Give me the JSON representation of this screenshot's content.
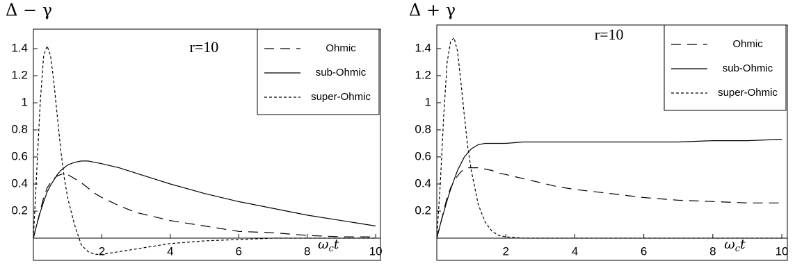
{
  "chart_data": [
    {
      "type": "line",
      "title": "Δ − γ",
      "annotation": "r=10",
      "xlabel": {
        "symbol": "ω",
        "subscript": "c",
        "variable": "t"
      },
      "legend": "top-right",
      "x": [
        0,
        0.1,
        0.2,
        0.3,
        0.4,
        0.5,
        0.6,
        0.7,
        0.8,
        0.9,
        1,
        1.2,
        1.4,
        1.6,
        1.8,
        2,
        2.5,
        3,
        3.5,
        4,
        5,
        6,
        7,
        8,
        9,
        10
      ],
      "series": [
        {
          "name": "Ohmic",
          "color": "#000000",
          "style": "long-dash",
          "values": [
            0,
            0.1,
            0.2,
            0.3,
            0.37,
            0.41,
            0.44,
            0.46,
            0.47,
            0.48,
            0.47,
            0.44,
            0.41,
            0.37,
            0.33,
            0.3,
            0.24,
            0.19,
            0.16,
            0.13,
            0.09,
            0.05,
            0.04,
            0.02,
            0.01,
            0.01
          ]
        },
        {
          "name": "sub-Ohmic",
          "color": "#000000",
          "style": "solid",
          "values": [
            0,
            0.1,
            0.19,
            0.27,
            0.34,
            0.39,
            0.43,
            0.47,
            0.5,
            0.52,
            0.54,
            0.56,
            0.57,
            0.57,
            0.56,
            0.55,
            0.52,
            0.48,
            0.44,
            0.4,
            0.33,
            0.27,
            0.22,
            0.17,
            0.13,
            0.09
          ]
        },
        {
          "name": "super-Ohmic",
          "color": "#000000",
          "style": "short-dash",
          "values": [
            0,
            0.5,
            1.0,
            1.35,
            1.42,
            1.35,
            1.15,
            0.9,
            0.65,
            0.45,
            0.3,
            0.1,
            -0.05,
            -0.1,
            -0.12,
            -0.12,
            -0.1,
            -0.08,
            -0.06,
            -0.04,
            -0.02,
            -0.01,
            0,
            0,
            0,
            0
          ]
        }
      ],
      "xlim": [
        0,
        10.14
      ],
      "ylim": [
        -0.164,
        1.544
      ],
      "xticks": [
        2,
        4,
        6,
        8,
        10
      ],
      "yticks": [
        0.2,
        0.4,
        0.6,
        0.8,
        1,
        1.2,
        1.4
      ]
    },
    {
      "type": "line",
      "title": "Δ + γ",
      "annotation": "r=10",
      "xlabel": {
        "symbol": "ω",
        "subscript": "c",
        "variable": "t"
      },
      "legend": "top-right",
      "x": [
        0,
        0.1,
        0.2,
        0.3,
        0.4,
        0.5,
        0.6,
        0.7,
        0.8,
        0.9,
        1,
        1.2,
        1.4,
        1.6,
        1.8,
        2,
        2.5,
        3,
        3.5,
        4,
        5,
        6,
        7,
        8,
        9,
        10
      ],
      "series": [
        {
          "name": "Ohmic",
          "color": "#000000",
          "style": "long-dash",
          "values": [
            0,
            0.1,
            0.2,
            0.3,
            0.37,
            0.42,
            0.46,
            0.49,
            0.51,
            0.52,
            0.52,
            0.52,
            0.51,
            0.5,
            0.48,
            0.47,
            0.44,
            0.41,
            0.38,
            0.36,
            0.33,
            0.3,
            0.28,
            0.27,
            0.26,
            0.26
          ]
        },
        {
          "name": "sub-Ohmic",
          "color": "#000000",
          "style": "solid",
          "values": [
            0,
            0.1,
            0.19,
            0.28,
            0.36,
            0.43,
            0.5,
            0.55,
            0.6,
            0.63,
            0.66,
            0.69,
            0.7,
            0.7,
            0.7,
            0.7,
            0.71,
            0.71,
            0.71,
            0.71,
            0.71,
            0.71,
            0.71,
            0.72,
            0.72,
            0.73
          ]
        },
        {
          "name": "super-Ohmic",
          "color": "#000000",
          "style": "short-dash",
          "values": [
            0,
            0.4,
            0.9,
            1.3,
            1.45,
            1.48,
            1.38,
            1.15,
            0.9,
            0.67,
            0.5,
            0.25,
            0.12,
            0.05,
            0.02,
            0.01,
            0,
            0,
            0,
            0,
            0,
            0,
            0,
            0,
            0,
            0
          ]
        }
      ],
      "xlim": [
        0,
        10.16
      ],
      "ylim": [
        -0.164,
        1.574
      ],
      "xticks": [
        2,
        4,
        6,
        8,
        10
      ],
      "yticks": [
        0.2,
        0.4,
        0.6,
        0.8,
        1,
        1.2,
        1.4
      ]
    }
  ]
}
